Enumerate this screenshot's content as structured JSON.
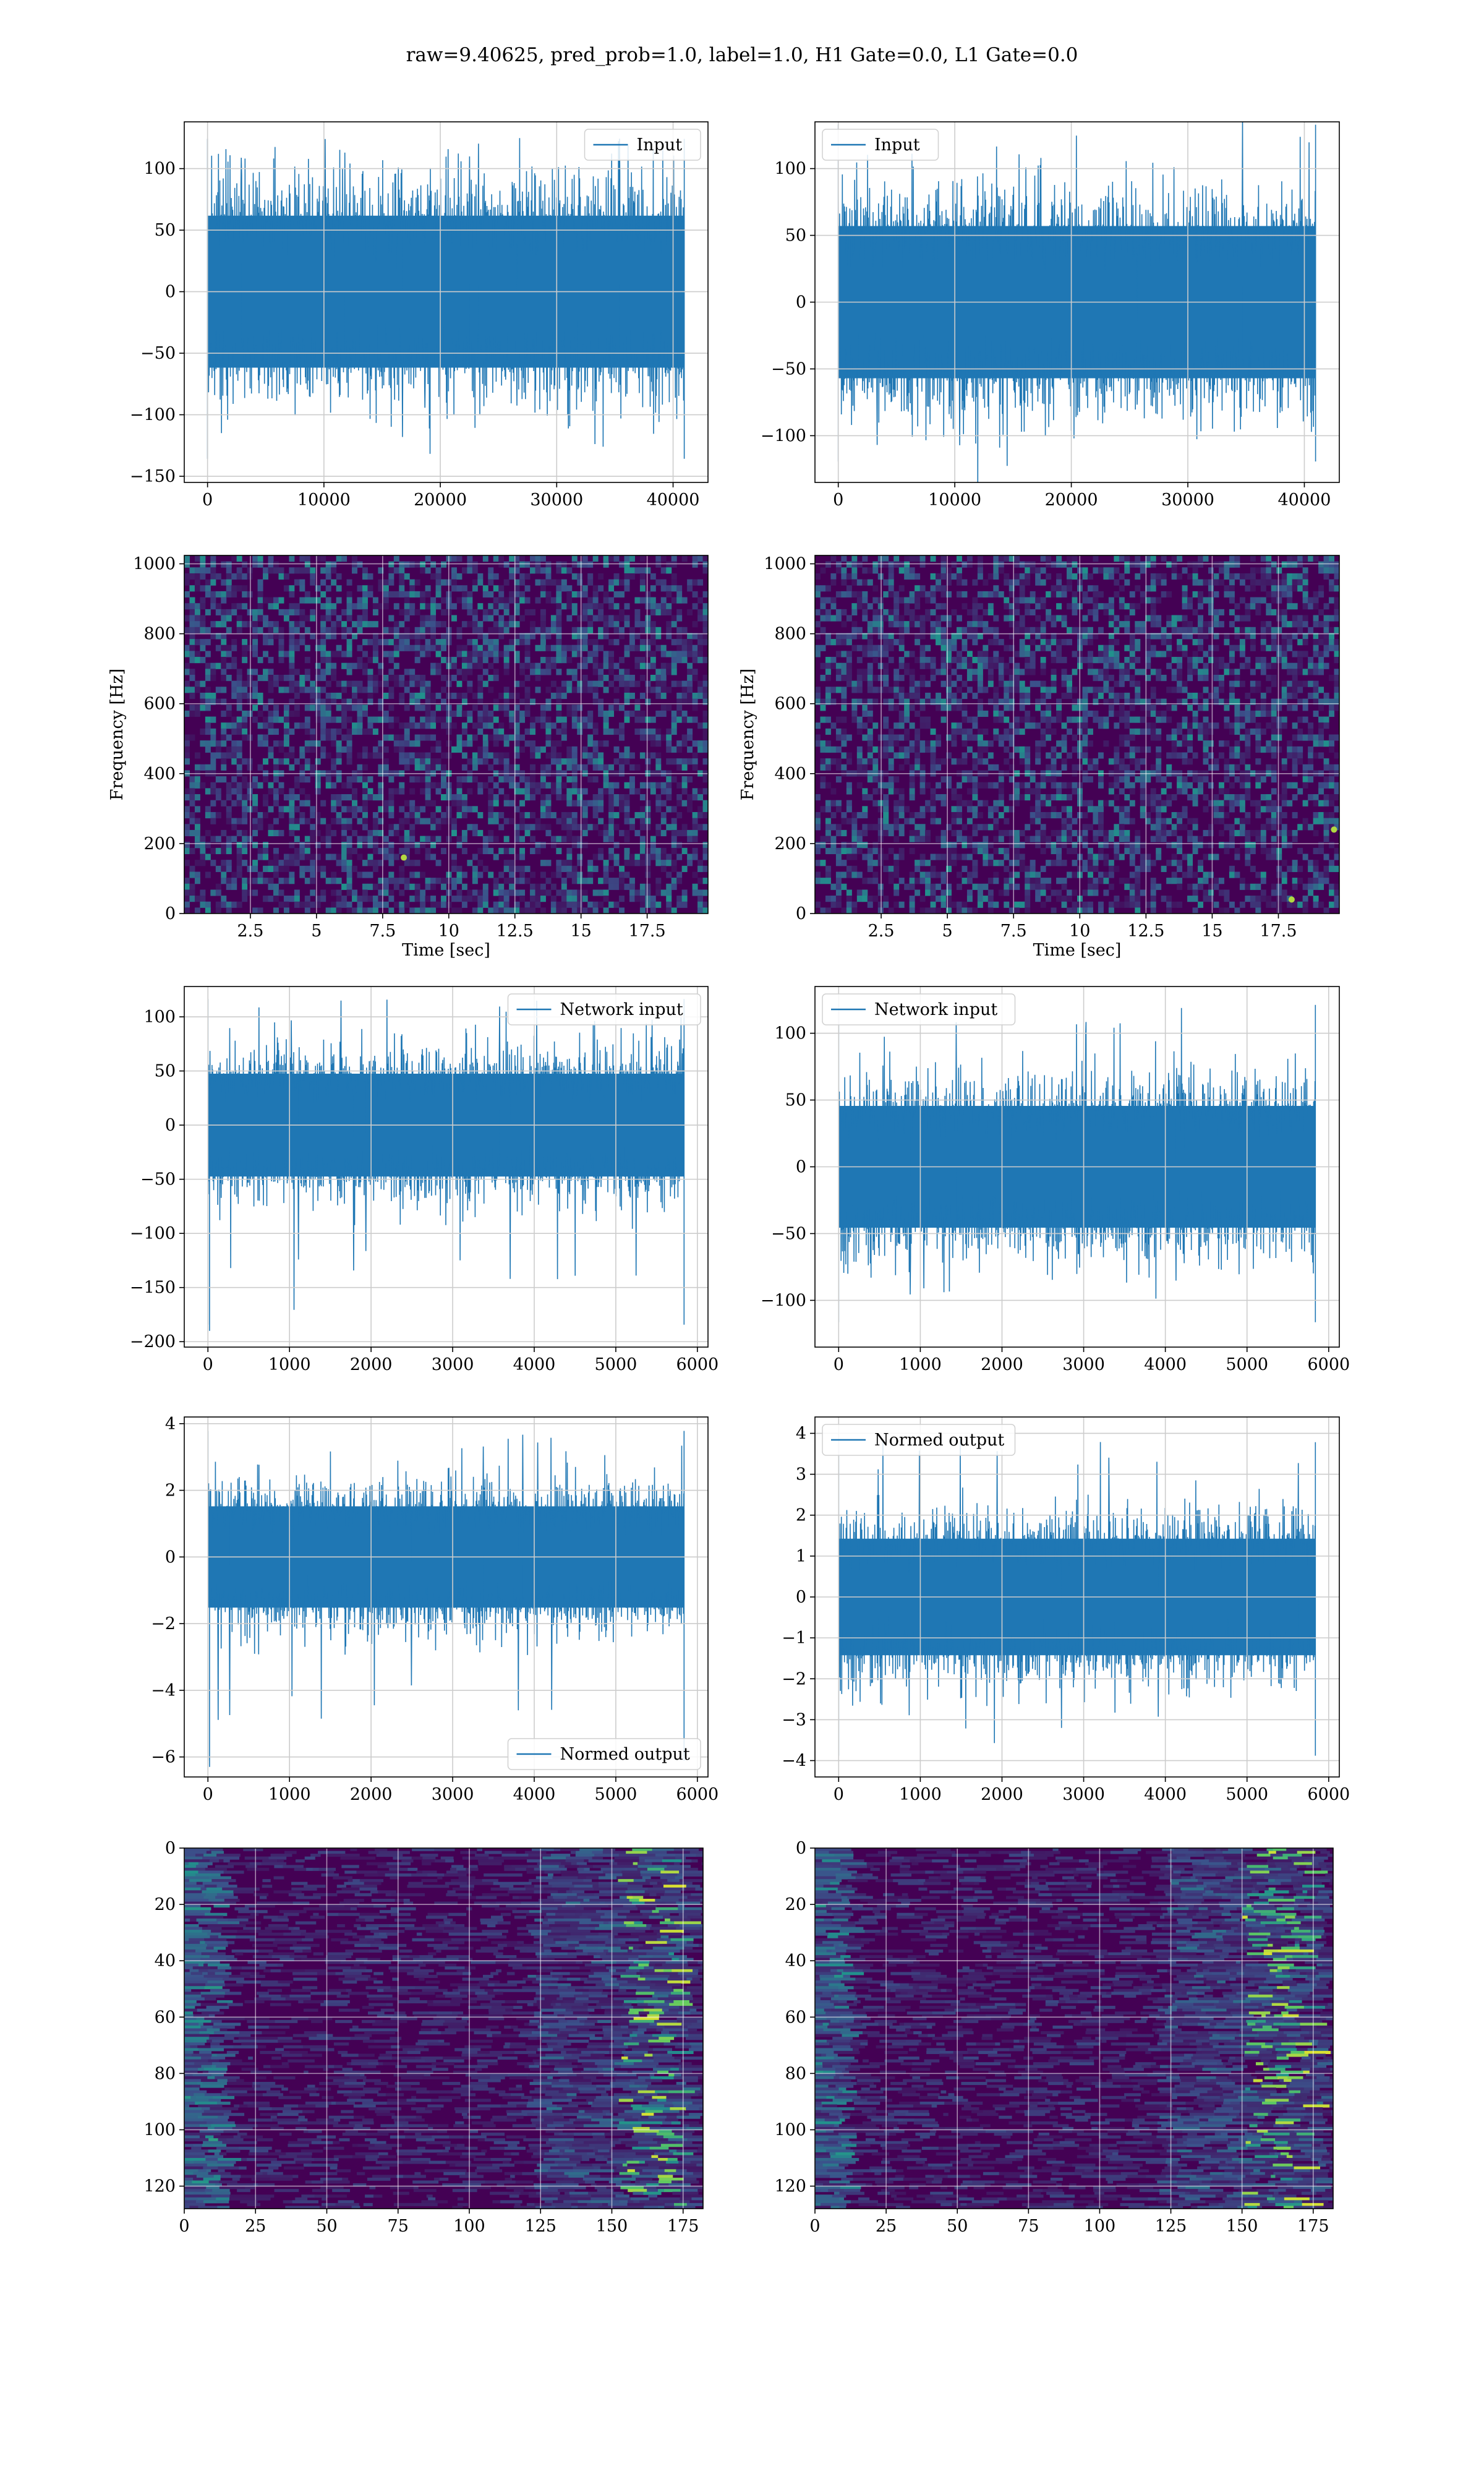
{
  "figure": {
    "title": "raw=9.40625, pred_prob=1.0, label=1.0, H1 Gate=0.0, L1 Gate=0.0"
  },
  "colors": {
    "series": "#1f77b4",
    "grid": "#cccccc",
    "spectrogram_base": "#440154",
    "viridis_low": "#440154",
    "viridis_mid": "#21918c",
    "viridis_high": "#fde725"
  },
  "chart_data": [
    {
      "id": "input-h1",
      "type": "line",
      "title": "",
      "xlabel": "",
      "ylabel": "",
      "legend": {
        "label": "Input",
        "loc": "upper right"
      },
      "x_range": [
        0,
        40960
      ],
      "xlim": [
        -2000,
        43000
      ],
      "ylim": [
        -155,
        138
      ],
      "xticks": [
        0,
        10000,
        20000,
        30000,
        40000
      ],
      "yticks": [
        -150,
        -100,
        -50,
        0,
        50,
        100
      ],
      "series": [
        {
          "name": "Input",
          "x_range": [
            0,
            40960
          ],
          "envelope": {
            "typical": 65,
            "max": 128,
            "min": -140
          }
        }
      ],
      "grid": true
    },
    {
      "id": "input-l1",
      "type": "line",
      "title": "",
      "xlabel": "",
      "ylabel": "",
      "legend": {
        "label": "Input",
        "loc": "upper left"
      },
      "x_range": [
        0,
        40960
      ],
      "xlim": [
        -2000,
        43000
      ],
      "ylim": [
        -135,
        135
      ],
      "xticks": [
        0,
        10000,
        20000,
        30000,
        40000
      ],
      "yticks": [
        -100,
        -50,
        0,
        50,
        100
      ],
      "series": [
        {
          "name": "Input",
          "x_range": [
            0,
            40960
          ],
          "envelope": {
            "typical": 60,
            "max": 137,
            "min": -123
          }
        }
      ],
      "grid": true
    },
    {
      "id": "spec-h1",
      "type": "heatmap",
      "title": "",
      "xlabel": "Time [sec]",
      "ylabel": "Frequency [Hz]",
      "xlim": [
        0.0,
        19.8
      ],
      "ylim": [
        0,
        1024
      ],
      "xticks": [
        2.5,
        5.0,
        7.5,
        10.0,
        12.5,
        15.0,
        17.5
      ],
      "yticks": [
        0,
        200,
        400,
        600,
        800,
        1000
      ],
      "colormap": "viridis",
      "bright_spots": [
        {
          "t": 8.3,
          "f": 160
        }
      ],
      "grid": true
    },
    {
      "id": "spec-l1",
      "type": "heatmap",
      "title": "",
      "xlabel": "Time [sec]",
      "ylabel": "Frequency [Hz]",
      "xlim": [
        0.0,
        19.8
      ],
      "ylim": [
        0,
        1024
      ],
      "xticks": [
        2.5,
        5.0,
        7.5,
        10.0,
        12.5,
        15.0,
        17.5
      ],
      "yticks": [
        0,
        200,
        400,
        600,
        800,
        1000
      ],
      "colormap": "viridis",
      "bright_spots": [
        {
          "t": 18.0,
          "f": 40
        },
        {
          "t": 19.6,
          "f": 240
        }
      ],
      "grid": true
    },
    {
      "id": "netin-h1",
      "type": "line",
      "title": "",
      "xlabel": "",
      "ylabel": "",
      "legend": {
        "label": "Network input",
        "loc": "upper right"
      },
      "x_range": [
        0,
        5837
      ],
      "xlim": [
        -290,
        6130
      ],
      "ylim": [
        -205,
        128
      ],
      "xticks": [
        0,
        1000,
        2000,
        3000,
        4000,
        5000,
        6000
      ],
      "yticks": [
        -200,
        -150,
        -100,
        -50,
        0,
        50,
        100
      ],
      "series": [
        {
          "name": "Network input",
          "x_range": [
            0,
            5837
          ],
          "envelope": {
            "typical": 50,
            "max": 120,
            "min": -190
          }
        }
      ],
      "grid": true
    },
    {
      "id": "netin-l1",
      "type": "line",
      "title": "",
      "xlabel": "",
      "ylabel": "",
      "legend": {
        "label": "Network input",
        "loc": "upper left"
      },
      "x_range": [
        0,
        5837
      ],
      "xlim": [
        -290,
        6130
      ],
      "ylim": [
        -135,
        135
      ],
      "xticks": [
        0,
        1000,
        2000,
        3000,
        4000,
        5000,
        6000
      ],
      "yticks": [
        -100,
        -50,
        0,
        50,
        100
      ],
      "series": [
        {
          "name": "Network input",
          "x_range": [
            0,
            5837
          ],
          "envelope": {
            "typical": 48,
            "max": 125,
            "min": -120
          }
        }
      ],
      "grid": true
    },
    {
      "id": "normed-h1",
      "type": "line",
      "title": "",
      "xlabel": "",
      "ylabel": "",
      "legend": {
        "label": "Normed output",
        "loc": "lower right"
      },
      "x_range": [
        0,
        5837
      ],
      "xlim": [
        -290,
        6130
      ],
      "ylim": [
        -6.6,
        4.2
      ],
      "xticks": [
        0,
        1000,
        2000,
        3000,
        4000,
        5000,
        6000
      ],
      "yticks": [
        -6,
        -4,
        -2,
        0,
        2,
        4
      ],
      "series": [
        {
          "name": "Normed output",
          "x_range": [
            0,
            5837
          ],
          "envelope": {
            "typical": 1.6,
            "max": 3.9,
            "min": -6.3
          }
        }
      ],
      "grid": true
    },
    {
      "id": "normed-l1",
      "type": "line",
      "title": "",
      "xlabel": "",
      "ylabel": "",
      "legend": {
        "label": "Normed output",
        "loc": "upper left"
      },
      "x_range": [
        0,
        5837
      ],
      "xlim": [
        -290,
        6130
      ],
      "ylim": [
        -4.4,
        4.4
      ],
      "xticks": [
        0,
        1000,
        2000,
        3000,
        4000,
        5000,
        6000
      ],
      "yticks": [
        -4,
        -3,
        -2,
        -1,
        0,
        1,
        2,
        3,
        4
      ],
      "series": [
        {
          "name": "Normed output",
          "x_range": [
            0,
            5837
          ],
          "envelope": {
            "typical": 1.5,
            "max": 3.9,
            "min": -4.0
          }
        }
      ],
      "grid": true
    },
    {
      "id": "feat-h1",
      "type": "heatmap",
      "title": "",
      "xlabel": "",
      "ylabel": "",
      "xlim": [
        0,
        182
      ],
      "ylim": [
        128,
        0
      ],
      "xticks": [
        0,
        25,
        50,
        75,
        100,
        125,
        150,
        175
      ],
      "yticks": [
        0,
        20,
        40,
        60,
        80,
        100,
        120
      ],
      "colormap": "viridis",
      "bright_band_x": [
        152,
        172
      ],
      "active_left_x": [
        0,
        12
      ],
      "grid": true
    },
    {
      "id": "feat-l1",
      "type": "heatmap",
      "title": "",
      "xlabel": "",
      "ylabel": "",
      "xlim": [
        0,
        182
      ],
      "ylim": [
        128,
        0
      ],
      "xticks": [
        0,
        25,
        50,
        75,
        100,
        125,
        150,
        175
      ],
      "yticks": [
        0,
        20,
        40,
        60,
        80,
        100,
        120
      ],
      "colormap": "viridis",
      "bright_band_x": [
        150,
        172
      ],
      "active_left_x": [
        0,
        10
      ],
      "grid": true
    }
  ]
}
